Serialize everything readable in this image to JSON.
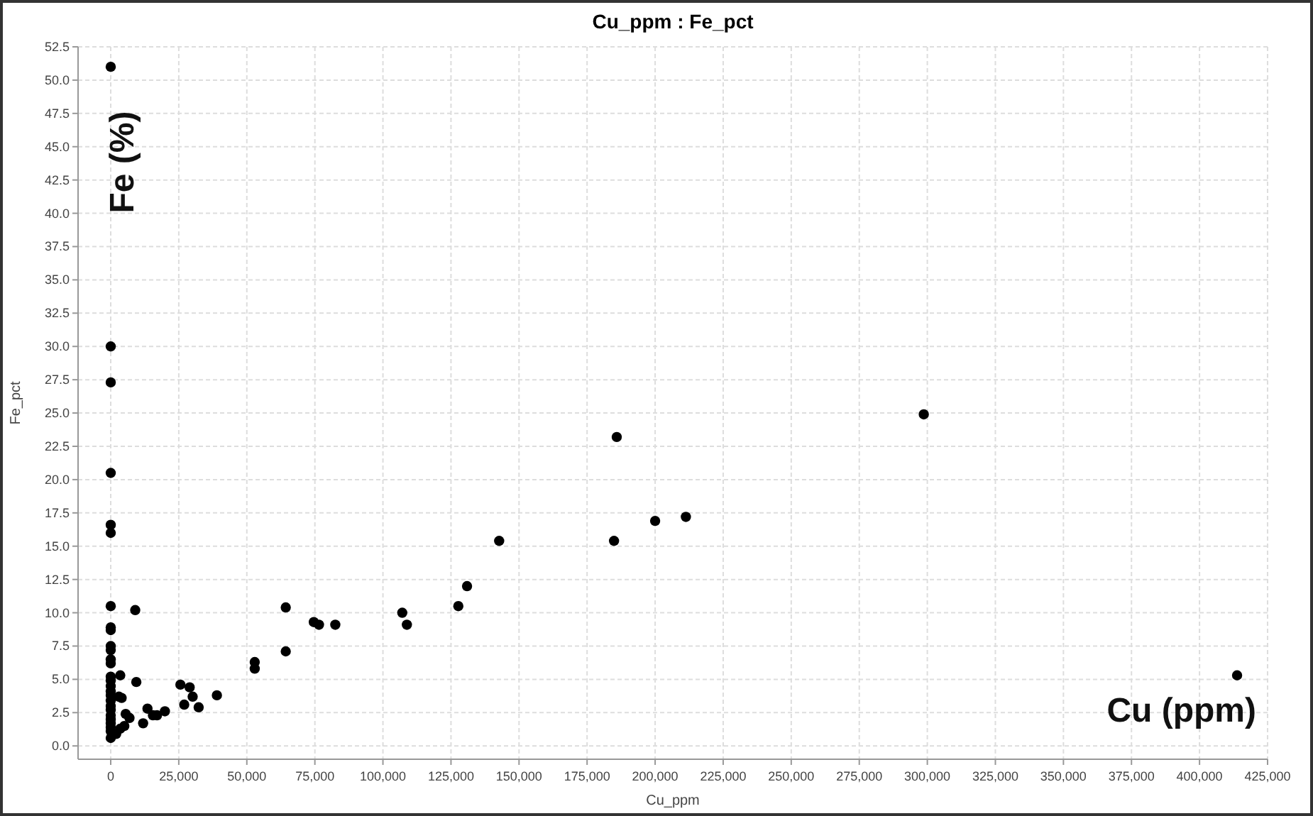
{
  "chart_data": {
    "type": "scatter",
    "title": "Cu_ppm : Fe_pct",
    "xlabel": "Cu_ppm",
    "ylabel": "Fe_pct",
    "annotations": [
      "Fe (%)",
      "Cu (ppm)"
    ],
    "xlim": [
      -12000,
      425000
    ],
    "xticks": [
      {
        "value": 0,
        "label": "0"
      },
      {
        "value": 25000,
        "label": "25,000"
      },
      {
        "value": 50000,
        "label": "50,000"
      },
      {
        "value": 75000,
        "label": "75,000"
      },
      {
        "value": 100000,
        "label": "100,000"
      },
      {
        "value": 125000,
        "label": "125,000"
      },
      {
        "value": 150000,
        "label": "150,000"
      },
      {
        "value": 175000,
        "label": "175,000"
      },
      {
        "value": 200000,
        "label": "200,000"
      },
      {
        "value": 225000,
        "label": "225,000"
      },
      {
        "value": 250000,
        "label": "250,000"
      },
      {
        "value": 275000,
        "label": "275,000"
      },
      {
        "value": 300000,
        "label": "300,000"
      },
      {
        "value": 325000,
        "label": "325,000"
      },
      {
        "value": 350000,
        "label": "350,000"
      },
      {
        "value": 375000,
        "label": "375,000"
      },
      {
        "value": 400000,
        "label": "400,000"
      },
      {
        "value": 425000,
        "label": "425,000"
      }
    ],
    "ylim": [
      -1,
      52.5
    ],
    "yticks": [
      {
        "value": 0,
        "label": "0.0"
      },
      {
        "value": 2.5,
        "label": "2.5"
      },
      {
        "value": 5,
        "label": "5.0"
      },
      {
        "value": 7.5,
        "label": "7.5"
      },
      {
        "value": 10,
        "label": "10.0"
      },
      {
        "value": 12.5,
        "label": "12.5"
      },
      {
        "value": 15,
        "label": "15.0"
      },
      {
        "value": 17.5,
        "label": "17.5"
      },
      {
        "value": 20,
        "label": "20.0"
      },
      {
        "value": 22.5,
        "label": "22.5"
      },
      {
        "value": 25,
        "label": "25.0"
      },
      {
        "value": 27.5,
        "label": "27.5"
      },
      {
        "value": 30,
        "label": "30.0"
      },
      {
        "value": 32.5,
        "label": "32.5"
      },
      {
        "value": 35,
        "label": "35.0"
      },
      {
        "value": 37.5,
        "label": "37.5"
      },
      {
        "value": 40,
        "label": "40.0"
      },
      {
        "value": 42.5,
        "label": "42.5"
      },
      {
        "value": 45,
        "label": "45.0"
      },
      {
        "value": 47.5,
        "label": "47.5"
      },
      {
        "value": 50,
        "label": "50.0"
      },
      {
        "value": 52.5,
        "label": "52.5"
      }
    ],
    "grid": true,
    "marker": "circle",
    "series": [
      {
        "color": "#000000",
        "x": [
          0,
          0,
          0,
          0,
          0,
          0,
          0,
          0,
          0,
          0,
          0,
          0,
          0,
          0,
          0,
          0,
          0,
          0,
          0,
          0,
          0,
          0,
          0,
          0,
          0,
          0,
          0,
          9000,
          9400,
          3500,
          4000,
          3000,
          5500,
          6900,
          5000,
          3500,
          2000,
          11900,
          13500,
          15500,
          17000,
          19900,
          25600,
          27000,
          29000,
          30100,
          32300,
          39000,
          52900,
          52900,
          64300,
          64300,
          74600,
          76500,
          82500,
          107100,
          108800,
          127700,
          130900,
          142700,
          185900,
          184900,
          200000,
          211300,
          298700,
          413800
        ],
        "values": [
          51,
          30,
          27.3,
          20.5,
          16.6,
          16,
          10.5,
          8.9,
          8.7,
          7.5,
          7.2,
          6.5,
          6.2,
          5.2,
          4.9,
          4.5,
          4.1,
          3.8,
          3.4,
          3,
          2.7,
          2.3,
          2,
          1.7,
          1.4,
          1.1,
          0.6,
          10.2,
          4.8,
          5.3,
          3.6,
          3.7,
          2.4,
          2.1,
          1.5,
          1.3,
          0.9,
          1.7,
          2.8,
          2.3,
          2.3,
          2.6,
          4.6,
          3.1,
          4.4,
          3.7,
          2.9,
          3.8,
          6.3,
          5.8,
          10.4,
          7.1,
          9.3,
          9.1,
          9.1,
          10,
          9.1,
          10.5,
          12,
          15.4,
          23.2,
          15.4,
          16.9,
          17.2,
          24.9,
          5.3
        ]
      }
    ]
  }
}
